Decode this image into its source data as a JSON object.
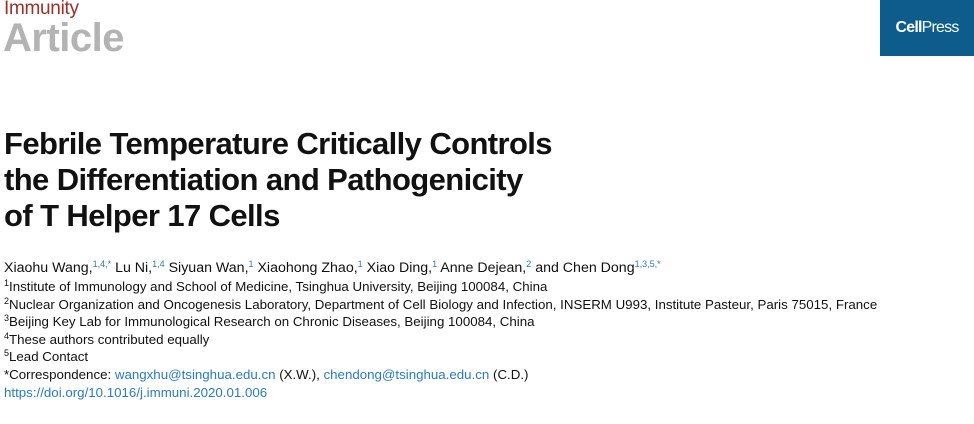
{
  "header": {
    "journal": "Immunity",
    "article_type": "Article",
    "logo_text": "CellPress",
    "colors": {
      "journal": "#9c2f28",
      "article": "#b3b3b3",
      "logo_bg": "#0d5c8c",
      "link": "#2a7bbf"
    }
  },
  "title": [
    "Febrile Temperature Critically Controls",
    "the Differentiation and Pathogenicity",
    "of T Helper 17 Cells"
  ],
  "authors": [
    {
      "name": "Xiaohu Wang,",
      "sup": "1,4,*"
    },
    {
      "name": " Lu Ni,",
      "sup": "1,4"
    },
    {
      "name": " Siyuan Wan,",
      "sup": "1"
    },
    {
      "name": " Xiaohong Zhao,",
      "sup": "1"
    },
    {
      "name": " Xiao Ding,",
      "sup": "1"
    },
    {
      "name": " Anne Dejean,",
      "sup": "2"
    },
    {
      "name": " and Chen Dong",
      "sup": "1,3,5,*"
    }
  ],
  "affiliations": [
    {
      "num": "1",
      "text": "Institute of Immunology and School of Medicine, Tsinghua University, Beijing 100084, China"
    },
    {
      "num": "2",
      "text": "Nuclear Organization and Oncogenesis Laboratory, Department of Cell Biology and Infection, INSERM U993, Institute Pasteur, Paris 75015, France"
    },
    {
      "num": "3",
      "text": "Beijing Key Lab for Immunological Research on Chronic Diseases, Beijing 100084, China"
    },
    {
      "num": "4",
      "text": "These authors contributed equally"
    },
    {
      "num": "5",
      "text": "Lead Contact"
    }
  ],
  "correspondence": {
    "prefix": "*Correspondence: ",
    "email1": "wangxhu@tsinghua.edu.cn",
    "note1": " (X.W.), ",
    "email2": "chendong@tsinghua.edu.cn",
    "note2": " (C.D.)"
  },
  "doi": "https://doi.org/10.1016/j.immuni.2020.01.006"
}
